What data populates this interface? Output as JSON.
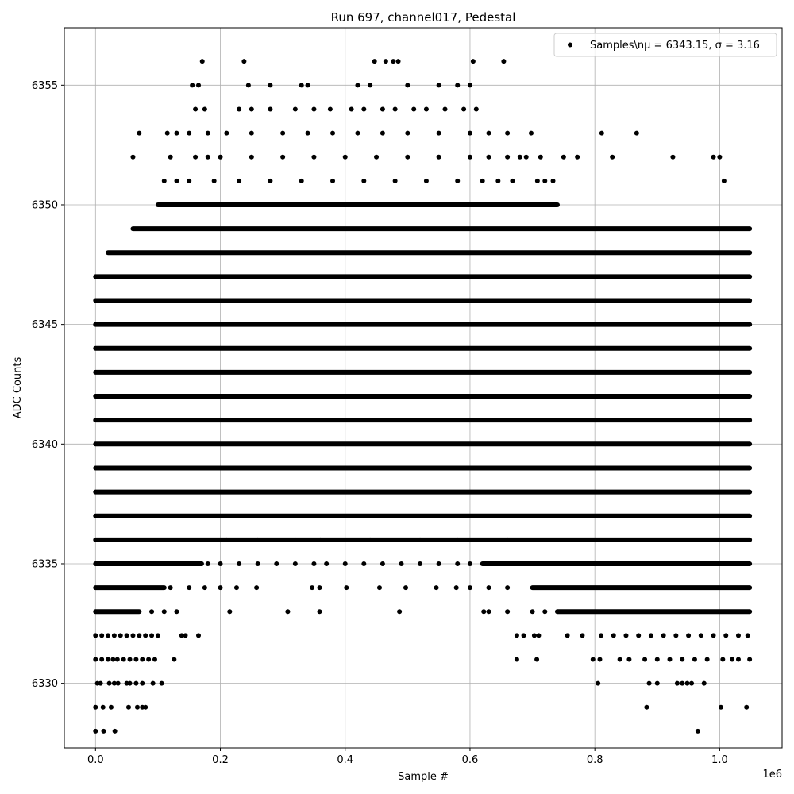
{
  "chart_data": {
    "type": "scatter",
    "title": "Run 697, channel017, Pedestal",
    "xlabel": "Sample #",
    "ylabel": "ADC Counts",
    "x_offset_label": "1e6",
    "xlim": [
      -0.05,
      1.1
    ],
    "ylim": [
      6327.3,
      6357.4
    ],
    "x_ticks": [
      0.0,
      0.2,
      0.4,
      0.6,
      0.8,
      1.0
    ],
    "x_tick_labels": [
      "0.0",
      "0.2",
      "0.4",
      "0.6",
      "0.8",
      "1.0"
    ],
    "y_ticks": [
      6330,
      6335,
      6340,
      6345,
      6350,
      6355
    ],
    "y_tick_labels": [
      "6330",
      "6335",
      "6340",
      "6345",
      "6350",
      "6355"
    ],
    "grid": true,
    "legend_position": "top-right",
    "marker_color": "#000000",
    "x_data_max": 1.048,
    "series": [
      {
        "name": "Samples\\nμ = 6343.15, σ = 3.16",
        "legend_label": "Samples\\nμ = 6343.15, σ = 3.16",
        "continuous_levels": [
          {
            "y": 6350,
            "ranges": [
              [
                0.1,
                0.74
              ]
            ]
          },
          {
            "y": 6349,
            "ranges": [
              [
                0.06,
                1.048
              ]
            ]
          },
          {
            "y": 6348,
            "ranges": [
              [
                0.02,
                1.048
              ]
            ]
          },
          {
            "y": 6347,
            "ranges": [
              [
                0.0,
                1.048
              ]
            ]
          },
          {
            "y": 6346,
            "ranges": [
              [
                0.0,
                1.048
              ]
            ]
          },
          {
            "y": 6345,
            "ranges": [
              [
                0.0,
                1.048
              ]
            ]
          },
          {
            "y": 6344,
            "ranges": [
              [
                0.0,
                1.048
              ]
            ]
          },
          {
            "y": 6343,
            "ranges": [
              [
                0.0,
                1.048
              ]
            ]
          },
          {
            "y": 6342,
            "ranges": [
              [
                0.0,
                1.048
              ]
            ]
          },
          {
            "y": 6341,
            "ranges": [
              [
                0.0,
                1.048
              ]
            ]
          },
          {
            "y": 6340,
            "ranges": [
              [
                0.0,
                1.048
              ]
            ]
          },
          {
            "y": 6339,
            "ranges": [
              [
                0.0,
                1.048
              ]
            ]
          },
          {
            "y": 6338,
            "ranges": [
              [
                0.0,
                1.048
              ]
            ]
          },
          {
            "y": 6337,
            "ranges": [
              [
                0.0,
                1.048
              ]
            ]
          },
          {
            "y": 6336,
            "ranges": [
              [
                0.0,
                1.048
              ]
            ]
          },
          {
            "y": 6335,
            "ranges": [
              [
                0.0,
                0.17
              ],
              [
                0.62,
                1.048
              ]
            ]
          },
          {
            "y": 6334,
            "ranges": [
              [
                0.0,
                0.11
              ],
              [
                0.7,
                1.048
              ]
            ]
          },
          {
            "y": 6333,
            "ranges": [
              [
                0.0,
                0.07
              ],
              [
                0.74,
                1.048
              ]
            ]
          }
        ],
        "points": [
          [
            0.0,
            6328
          ],
          [
            0.013,
            6328
          ],
          [
            0.031,
            6328
          ],
          [
            0.965,
            6328
          ],
          [
            0.0,
            6329
          ],
          [
            0.012,
            6329
          ],
          [
            0.025,
            6329
          ],
          [
            0.053,
            6329
          ],
          [
            0.067,
            6329
          ],
          [
            0.075,
            6329
          ],
          [
            0.08,
            6329
          ],
          [
            0.883,
            6329
          ],
          [
            1.002,
            6329
          ],
          [
            1.043,
            6329
          ],
          [
            0.003,
            6330
          ],
          [
            0.008,
            6330
          ],
          [
            0.022,
            6330
          ],
          [
            0.03,
            6330
          ],
          [
            0.036,
            6330
          ],
          [
            0.05,
            6330
          ],
          [
            0.055,
            6330
          ],
          [
            0.065,
            6330
          ],
          [
            0.075,
            6330
          ],
          [
            0.092,
            6330
          ],
          [
            0.106,
            6330
          ],
          [
            0.805,
            6330
          ],
          [
            0.887,
            6330
          ],
          [
            0.9,
            6330
          ],
          [
            0.932,
            6330
          ],
          [
            0.94,
            6330
          ],
          [
            0.948,
            6330
          ],
          [
            0.955,
            6330
          ],
          [
            0.975,
            6330
          ],
          [
            0.0,
            6331
          ],
          [
            0.01,
            6331
          ],
          [
            0.02,
            6331
          ],
          [
            0.028,
            6331
          ],
          [
            0.035,
            6331
          ],
          [
            0.045,
            6331
          ],
          [
            0.055,
            6331
          ],
          [
            0.065,
            6331
          ],
          [
            0.075,
            6331
          ],
          [
            0.085,
            6331
          ],
          [
            0.095,
            6331
          ],
          [
            0.126,
            6331
          ],
          [
            0.675,
            6331
          ],
          [
            0.707,
            6331
          ],
          [
            0.797,
            6331
          ],
          [
            0.808,
            6331
          ],
          [
            0.84,
            6331
          ],
          [
            0.855,
            6331
          ],
          [
            0.88,
            6331
          ],
          [
            0.9,
            6331
          ],
          [
            0.92,
            6331
          ],
          [
            0.94,
            6331
          ],
          [
            0.96,
            6331
          ],
          [
            0.98,
            6331
          ],
          [
            1.005,
            6331
          ],
          [
            1.02,
            6331
          ],
          [
            1.03,
            6331
          ],
          [
            1.048,
            6331
          ],
          [
            0.0,
            6332
          ],
          [
            0.01,
            6332
          ],
          [
            0.02,
            6332
          ],
          [
            0.03,
            6332
          ],
          [
            0.04,
            6332
          ],
          [
            0.05,
            6332
          ],
          [
            0.06,
            6332
          ],
          [
            0.07,
            6332
          ],
          [
            0.08,
            6332
          ],
          [
            0.09,
            6332
          ],
          [
            0.1,
            6332
          ],
          [
            0.138,
            6332
          ],
          [
            0.144,
            6332
          ],
          [
            0.165,
            6332
          ],
          [
            0.675,
            6332
          ],
          [
            0.686,
            6332
          ],
          [
            0.703,
            6332
          ],
          [
            0.71,
            6332
          ],
          [
            0.756,
            6332
          ],
          [
            0.78,
            6332
          ],
          [
            0.81,
            6332
          ],
          [
            0.83,
            6332
          ],
          [
            0.85,
            6332
          ],
          [
            0.87,
            6332
          ],
          [
            0.89,
            6332
          ],
          [
            0.91,
            6332
          ],
          [
            0.93,
            6332
          ],
          [
            0.95,
            6332
          ],
          [
            0.97,
            6332
          ],
          [
            0.99,
            6332
          ],
          [
            1.01,
            6332
          ],
          [
            1.03,
            6332
          ],
          [
            1.045,
            6332
          ],
          [
            0.09,
            6333
          ],
          [
            0.11,
            6333
          ],
          [
            0.13,
            6333
          ],
          [
            0.215,
            6333
          ],
          [
            0.308,
            6333
          ],
          [
            0.359,
            6333
          ],
          [
            0.487,
            6333
          ],
          [
            0.622,
            6333
          ],
          [
            0.63,
            6333
          ],
          [
            0.66,
            6333
          ],
          [
            0.7,
            6333
          ],
          [
            0.72,
            6333
          ],
          [
            0.12,
            6334
          ],
          [
            0.15,
            6334
          ],
          [
            0.175,
            6334
          ],
          [
            0.2,
            6334
          ],
          [
            0.226,
            6334
          ],
          [
            0.258,
            6334
          ],
          [
            0.347,
            6334
          ],
          [
            0.359,
            6334
          ],
          [
            0.402,
            6334
          ],
          [
            0.455,
            6334
          ],
          [
            0.497,
            6334
          ],
          [
            0.546,
            6334
          ],
          [
            0.578,
            6334
          ],
          [
            0.6,
            6334
          ],
          [
            0.63,
            6334
          ],
          [
            0.66,
            6334
          ],
          [
            0.18,
            6335
          ],
          [
            0.2,
            6335
          ],
          [
            0.23,
            6335
          ],
          [
            0.26,
            6335
          ],
          [
            0.29,
            6335
          ],
          [
            0.32,
            6335
          ],
          [
            0.35,
            6335
          ],
          [
            0.37,
            6335
          ],
          [
            0.4,
            6335
          ],
          [
            0.43,
            6335
          ],
          [
            0.46,
            6335
          ],
          [
            0.49,
            6335
          ],
          [
            0.52,
            6335
          ],
          [
            0.55,
            6335
          ],
          [
            0.58,
            6335
          ],
          [
            0.6,
            6335
          ],
          [
            0.21,
            6336
          ],
          [
            0.26,
            6336
          ],
          [
            0.32,
            6336
          ],
          [
            0.36,
            6336
          ],
          [
            0.44,
            6336
          ],
          [
            0.52,
            6336
          ],
          [
            0.58,
            6336
          ],
          [
            0.66,
            6336
          ],
          [
            0.11,
            6351
          ],
          [
            0.13,
            6351
          ],
          [
            0.15,
            6351
          ],
          [
            0.19,
            6351
          ],
          [
            0.23,
            6351
          ],
          [
            0.28,
            6351
          ],
          [
            0.33,
            6351
          ],
          [
            0.38,
            6351
          ],
          [
            0.43,
            6351
          ],
          [
            0.48,
            6351
          ],
          [
            0.53,
            6351
          ],
          [
            0.58,
            6351
          ],
          [
            0.62,
            6351
          ],
          [
            0.645,
            6351
          ],
          [
            0.668,
            6351
          ],
          [
            0.708,
            6351
          ],
          [
            0.72,
            6351
          ],
          [
            0.733,
            6351
          ],
          [
            1.007,
            6351
          ],
          [
            0.06,
            6352
          ],
          [
            0.12,
            6352
          ],
          [
            0.16,
            6352
          ],
          [
            0.18,
            6352
          ],
          [
            0.2,
            6352
          ],
          [
            0.25,
            6352
          ],
          [
            0.3,
            6352
          ],
          [
            0.35,
            6352
          ],
          [
            0.4,
            6352
          ],
          [
            0.45,
            6352
          ],
          [
            0.5,
            6352
          ],
          [
            0.55,
            6352
          ],
          [
            0.6,
            6352
          ],
          [
            0.63,
            6352
          ],
          [
            0.66,
            6352
          ],
          [
            0.68,
            6352
          ],
          [
            0.69,
            6352
          ],
          [
            0.713,
            6352
          ],
          [
            0.75,
            6352
          ],
          [
            0.772,
            6352
          ],
          [
            0.828,
            6352
          ],
          [
            0.925,
            6352
          ],
          [
            0.99,
            6352
          ],
          [
            1.0,
            6352
          ],
          [
            0.07,
            6353
          ],
          [
            0.115,
            6353
          ],
          [
            0.13,
            6353
          ],
          [
            0.15,
            6353
          ],
          [
            0.18,
            6353
          ],
          [
            0.21,
            6353
          ],
          [
            0.25,
            6353
          ],
          [
            0.3,
            6353
          ],
          [
            0.34,
            6353
          ],
          [
            0.38,
            6353
          ],
          [
            0.42,
            6353
          ],
          [
            0.46,
            6353
          ],
          [
            0.5,
            6353
          ],
          [
            0.55,
            6353
          ],
          [
            0.6,
            6353
          ],
          [
            0.63,
            6353
          ],
          [
            0.66,
            6353
          ],
          [
            0.698,
            6353
          ],
          [
            0.811,
            6353
          ],
          [
            0.867,
            6353
          ],
          [
            0.16,
            6354
          ],
          [
            0.175,
            6354
          ],
          [
            0.23,
            6354
          ],
          [
            0.25,
            6354
          ],
          [
            0.28,
            6354
          ],
          [
            0.32,
            6354
          ],
          [
            0.35,
            6354
          ],
          [
            0.376,
            6354
          ],
          [
            0.41,
            6354
          ],
          [
            0.43,
            6354
          ],
          [
            0.46,
            6354
          ],
          [
            0.48,
            6354
          ],
          [
            0.51,
            6354
          ],
          [
            0.53,
            6354
          ],
          [
            0.56,
            6354
          ],
          [
            0.59,
            6354
          ],
          [
            0.61,
            6354
          ],
          [
            0.155,
            6355
          ],
          [
            0.165,
            6355
          ],
          [
            0.245,
            6355
          ],
          [
            0.28,
            6355
          ],
          [
            0.33,
            6355
          ],
          [
            0.34,
            6355
          ],
          [
            0.42,
            6355
          ],
          [
            0.44,
            6355
          ],
          [
            0.5,
            6355
          ],
          [
            0.55,
            6355
          ],
          [
            0.58,
            6355
          ],
          [
            0.6,
            6355
          ],
          [
            0.171,
            6356
          ],
          [
            0.238,
            6356
          ],
          [
            0.447,
            6356
          ],
          [
            0.465,
            6356
          ],
          [
            0.477,
            6356
          ],
          [
            0.485,
            6356
          ],
          [
            0.605,
            6356
          ],
          [
            0.654,
            6356
          ]
        ]
      }
    ]
  }
}
